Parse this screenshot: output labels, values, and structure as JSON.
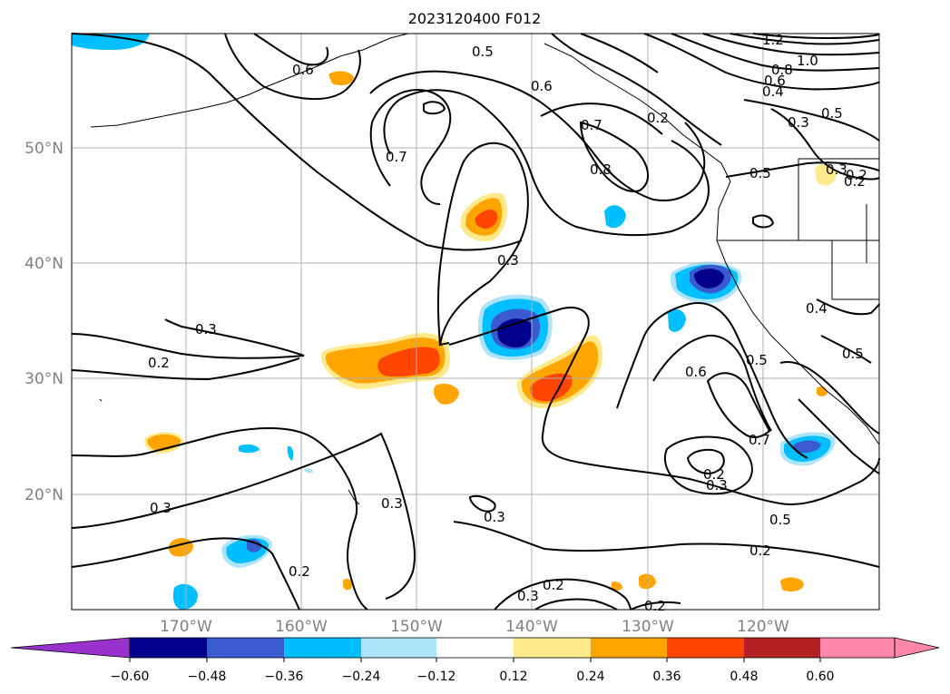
{
  "title": "2023120400 F012",
  "axes": {
    "lat_labels": [
      "50°N",
      "40°N",
      "30°N",
      "20°N"
    ],
    "lon_labels": [
      "170°W",
      "160°W",
      "150°W",
      "140°W",
      "130°W",
      "120°W"
    ],
    "label_color": "#808080",
    "grid": true
  },
  "contour_labels": [
    "1.2",
    "1.0",
    "0.8",
    "0.6",
    "0.4",
    "0.5",
    "0.3",
    "0.2",
    "0.6",
    "0.5",
    "0.6",
    "0.7",
    "0.7",
    "0.8",
    "0.3",
    "0.3",
    "0.2",
    "0.3",
    "0.2",
    "0.3",
    "0.3",
    "0.2",
    "0.3",
    "0.2",
    "0.2",
    "0.6",
    "0.5",
    "0.7",
    "0.2",
    "0.3",
    "0.5",
    "0.2",
    "0.4",
    "0.5",
    "0.5",
    "0.3",
    "0.2"
  ],
  "colorbar": {
    "ticks": [
      "−0.60",
      "−0.48",
      "−0.36",
      "−0.24",
      "−0.12",
      "0.12",
      "0.24",
      "0.36",
      "0.48",
      "0.60"
    ],
    "colors": [
      "#9932cc",
      "#00008b",
      "#3a5bd0",
      "#00bfff",
      "#ade3fb",
      "#ffffff",
      "#ffe98a",
      "#ffa500",
      "#ff4500",
      "#b22222",
      "#ff88aa"
    ],
    "extend": "both"
  }
}
